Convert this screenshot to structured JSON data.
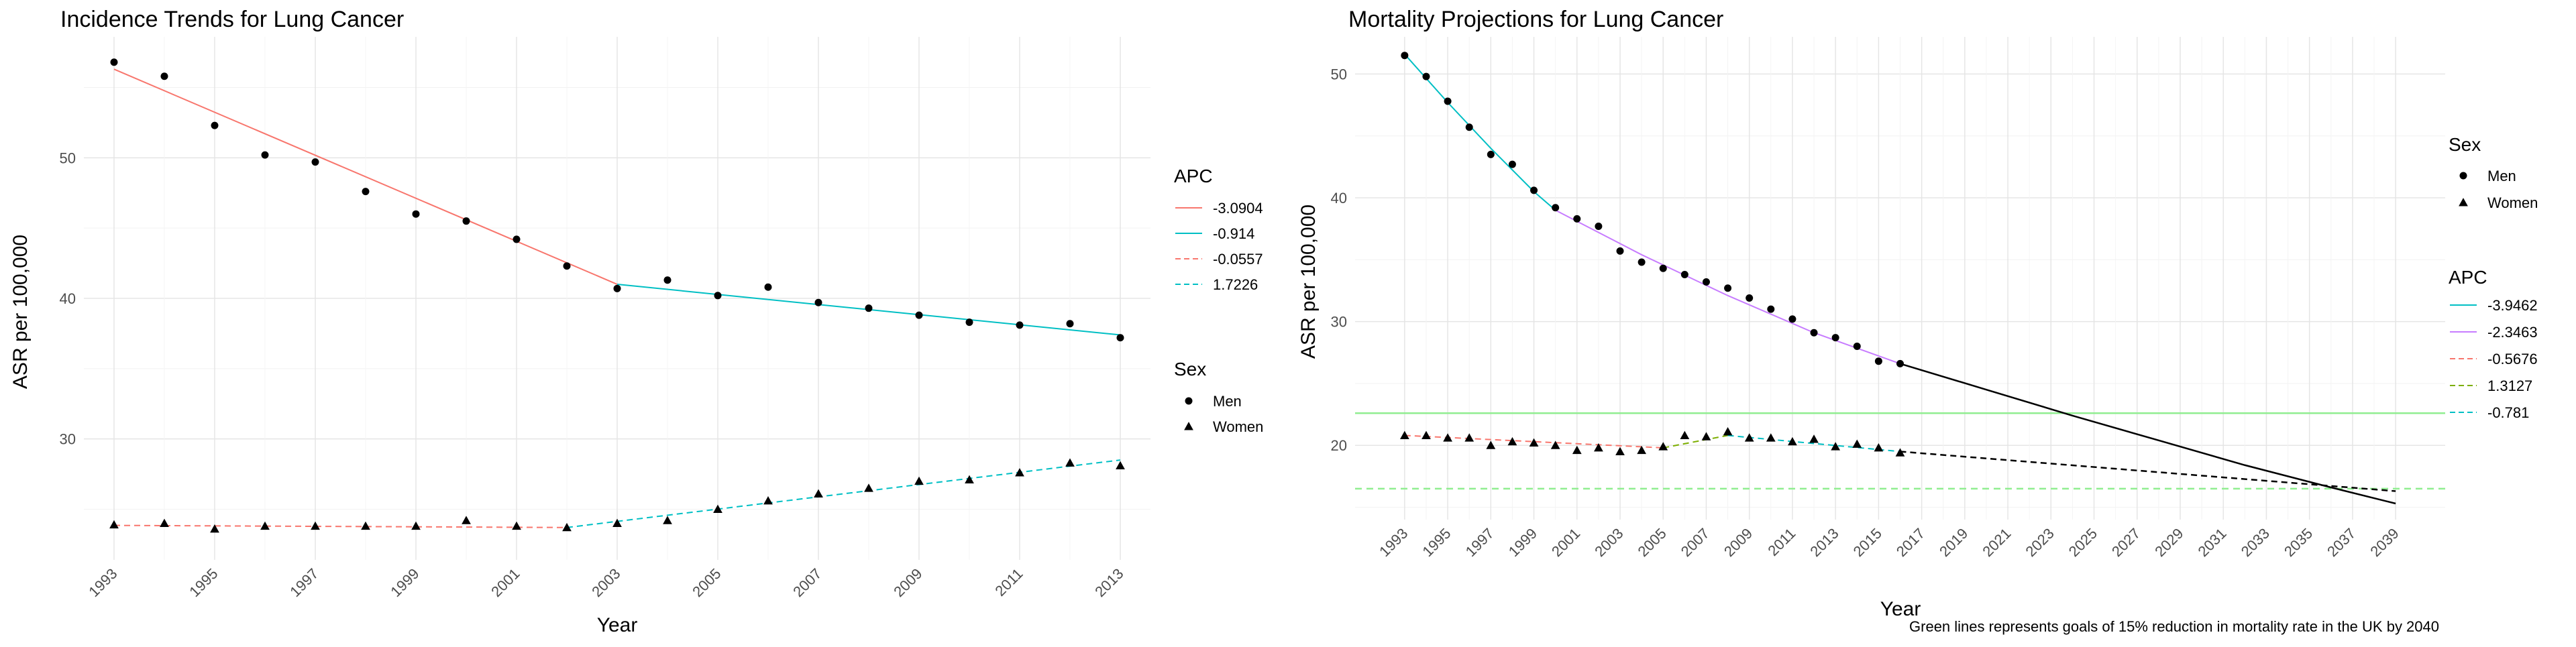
{
  "chart_data": [
    {
      "type": "scatter",
      "title": "Incidence Trends for Lung Cancer",
      "xlabel": "Year",
      "ylabel": "ASR per 100,000",
      "xlim": [
        1992.4,
        2013.6
      ],
      "ylim": [
        21.4,
        58.6
      ],
      "x_ticks": [
        1993,
        1995,
        1997,
        1999,
        2001,
        2003,
        2005,
        2007,
        2009,
        2011,
        2013
      ],
      "y_ticks": [
        30,
        40,
        50
      ],
      "grid": true,
      "points": [
        {
          "name": "Men",
          "shape": "circle",
          "x": [
            1993,
            1994,
            1995,
            1996,
            1997,
            1998,
            1999,
            2000,
            2001,
            2002,
            2003,
            2004,
            2005,
            2006,
            2007,
            2008,
            2009,
            2010,
            2011,
            2012,
            2013
          ],
          "y": [
            56.8,
            55.8,
            52.3,
            50.2,
            49.7,
            47.6,
            46.0,
            45.5,
            44.2,
            42.3,
            40.7,
            41.3,
            40.2,
            40.8,
            39.7,
            39.3,
            38.8,
            38.3,
            38.1,
            38.2,
            37.2
          ]
        },
        {
          "name": "Women",
          "shape": "triangle",
          "x": [
            1993,
            1994,
            1995,
            1996,
            1997,
            1998,
            1999,
            2000,
            2001,
            2002,
            2003,
            2004,
            2005,
            2006,
            2007,
            2008,
            2009,
            2010,
            2011,
            2012,
            2013
          ],
          "y": [
            23.9,
            24.0,
            23.6,
            23.8,
            23.8,
            23.8,
            23.8,
            24.2,
            23.8,
            23.7,
            24.0,
            24.2,
            25.0,
            25.6,
            26.1,
            26.5,
            27.0,
            27.1,
            27.6,
            28.3,
            28.1
          ]
        }
      ],
      "fit_segments": [
        {
          "apc": "-3.0904",
          "color": "#F8766D",
          "dash": false,
          "x": [
            1993,
            2003
          ],
          "y": [
            56.3,
            41.0
          ]
        },
        {
          "apc": "-0.914",
          "color": "#00BFC4",
          "dash": false,
          "x": [
            2003,
            2013
          ],
          "y": [
            41.0,
            37.4
          ]
        },
        {
          "apc": "-0.0557",
          "color": "#F8766D",
          "dash": true,
          "x": [
            1993,
            2002
          ],
          "y": [
            23.85,
            23.7
          ]
        },
        {
          "apc": "1.7226",
          "color": "#00BFC4",
          "dash": true,
          "x": [
            2002,
            2013
          ],
          "y": [
            23.7,
            28.5
          ]
        }
      ],
      "legends": {
        "apc": {
          "title": "APC",
          "items": [
            {
              "label": "-3.0904",
              "color": "#F8766D",
              "dash": false
            },
            {
              "label": "-0.914",
              "color": "#00BFC4",
              "dash": false
            },
            {
              "label": "-0.0557",
              "color": "#F8766D",
              "dash": true
            },
            {
              "label": "1.7226",
              "color": "#00BFC4",
              "dash": true
            }
          ]
        },
        "sex": {
          "title": "Sex",
          "items": [
            {
              "label": "Men",
              "shape": "circle"
            },
            {
              "label": "Women",
              "shape": "triangle"
            }
          ]
        }
      }
    },
    {
      "type": "scatter",
      "title": "Mortality Projections for Lung Cancer",
      "xlabel": "Year",
      "ylabel": "ASR per 100,000",
      "xlim": [
        1990.7,
        2041.3
      ],
      "ylim": [
        14.0,
        53.0
      ],
      "x_ticks": [
        1993,
        1995,
        1997,
        1999,
        2001,
        2003,
        2005,
        2007,
        2009,
        2011,
        2013,
        2015,
        2017,
        2019,
        2021,
        2023,
        2025,
        2027,
        2029,
        2031,
        2033,
        2035,
        2037,
        2039
      ],
      "y_ticks": [
        20,
        30,
        40,
        50
      ],
      "grid": true,
      "points": [
        {
          "name": "Men",
          "shape": "circle",
          "x": [
            1993,
            1994,
            1995,
            1996,
            1997,
            1998,
            1999,
            2000,
            2001,
            2002,
            2003,
            2004,
            2005,
            2006,
            2007,
            2008,
            2009,
            2010,
            2011,
            2012,
            2013,
            2014,
            2015,
            2016
          ],
          "y": [
            51.5,
            49.8,
            47.8,
            45.7,
            43.5,
            42.7,
            40.6,
            39.2,
            38.3,
            37.7,
            35.7,
            34.8,
            34.3,
            33.8,
            33.2,
            32.7,
            31.9,
            31.0,
            30.2,
            29.1,
            28.7,
            28.0,
            26.8,
            26.6
          ]
        },
        {
          "name": "Women",
          "shape": "triangle",
          "x": [
            1993,
            1994,
            1995,
            1996,
            1997,
            1998,
            1999,
            2000,
            2001,
            2002,
            2003,
            2004,
            2005,
            2006,
            2007,
            2008,
            2009,
            2010,
            2011,
            2012,
            2013,
            2014,
            2015,
            2016
          ],
          "y": [
            20.8,
            20.8,
            20.6,
            20.6,
            20.0,
            20.3,
            20.2,
            20.0,
            19.6,
            19.8,
            19.5,
            19.6,
            19.9,
            20.8,
            20.7,
            21.1,
            20.6,
            20.6,
            20.3,
            20.5,
            19.9,
            20.1,
            19.8,
            19.4
          ]
        }
      ],
      "fit_segments": [
        {
          "apc": "-3.9462",
          "color": "#00BFC4",
          "dash": false,
          "x": [
            1993,
            1995,
            1997,
            1999,
            2000
          ],
          "y": [
            51.6,
            47.7,
            44.0,
            40.5,
            39.0
          ]
        },
        {
          "apc": "-2.3463",
          "color": "#C77CFF",
          "dash": false,
          "x": [
            2000,
            2004,
            2008,
            2012,
            2016
          ],
          "y": [
            39.0,
            35.4,
            32.1,
            29.1,
            26.6
          ]
        },
        {
          "apc": "-0.5676",
          "color": "#F8766D",
          "dash": true,
          "x": [
            1993,
            2005
          ],
          "y": [
            20.8,
            19.8
          ]
        },
        {
          "apc": "1.3127",
          "color": "#7CAE00",
          "dash": true,
          "x": [
            2005,
            2008
          ],
          "y": [
            19.8,
            20.8
          ]
        },
        {
          "apc": "-0.781",
          "color": "#00BFC4",
          "dash": true,
          "x": [
            2008,
            2016
          ],
          "y": [
            20.8,
            19.5
          ]
        }
      ],
      "projections": [
        {
          "series": "Men",
          "color": "#000000",
          "dash": false,
          "x": [
            2016,
            2020,
            2024,
            2028,
            2032,
            2036,
            2039
          ],
          "y": [
            26.6,
            24.5,
            22.4,
            20.4,
            18.4,
            16.6,
            15.3
          ]
        },
        {
          "series": "Women",
          "color": "#000000",
          "dash": true,
          "x": [
            2016,
            2039
          ],
          "y": [
            19.5,
            16.3
          ]
        }
      ],
      "goal_lines": [
        {
          "y": 22.6,
          "color": "#90EE90",
          "dash": false
        },
        {
          "y": 16.5,
          "color": "#90EE90",
          "dash": true
        }
      ],
      "caption": "Green lines represents goals of 15% reduction in mortality rate in the UK by 2040",
      "legends": {
        "sex": {
          "title": "Sex",
          "items": [
            {
              "label": "Men",
              "shape": "circle"
            },
            {
              "label": "Women",
              "shape": "triangle"
            }
          ]
        },
        "apc": {
          "title": "APC",
          "items": [
            {
              "label": "-3.9462",
              "color": "#00BFC4",
              "dash": false
            },
            {
              "label": "-2.3463",
              "color": "#C77CFF",
              "dash": false
            },
            {
              "label": "-0.5676",
              "color": "#F8766D",
              "dash": true
            },
            {
              "label": "1.3127",
              "color": "#7CAE00",
              "dash": true
            },
            {
              "label": "-0.781",
              "color": "#00BFC4",
              "dash": true
            }
          ]
        }
      }
    }
  ]
}
